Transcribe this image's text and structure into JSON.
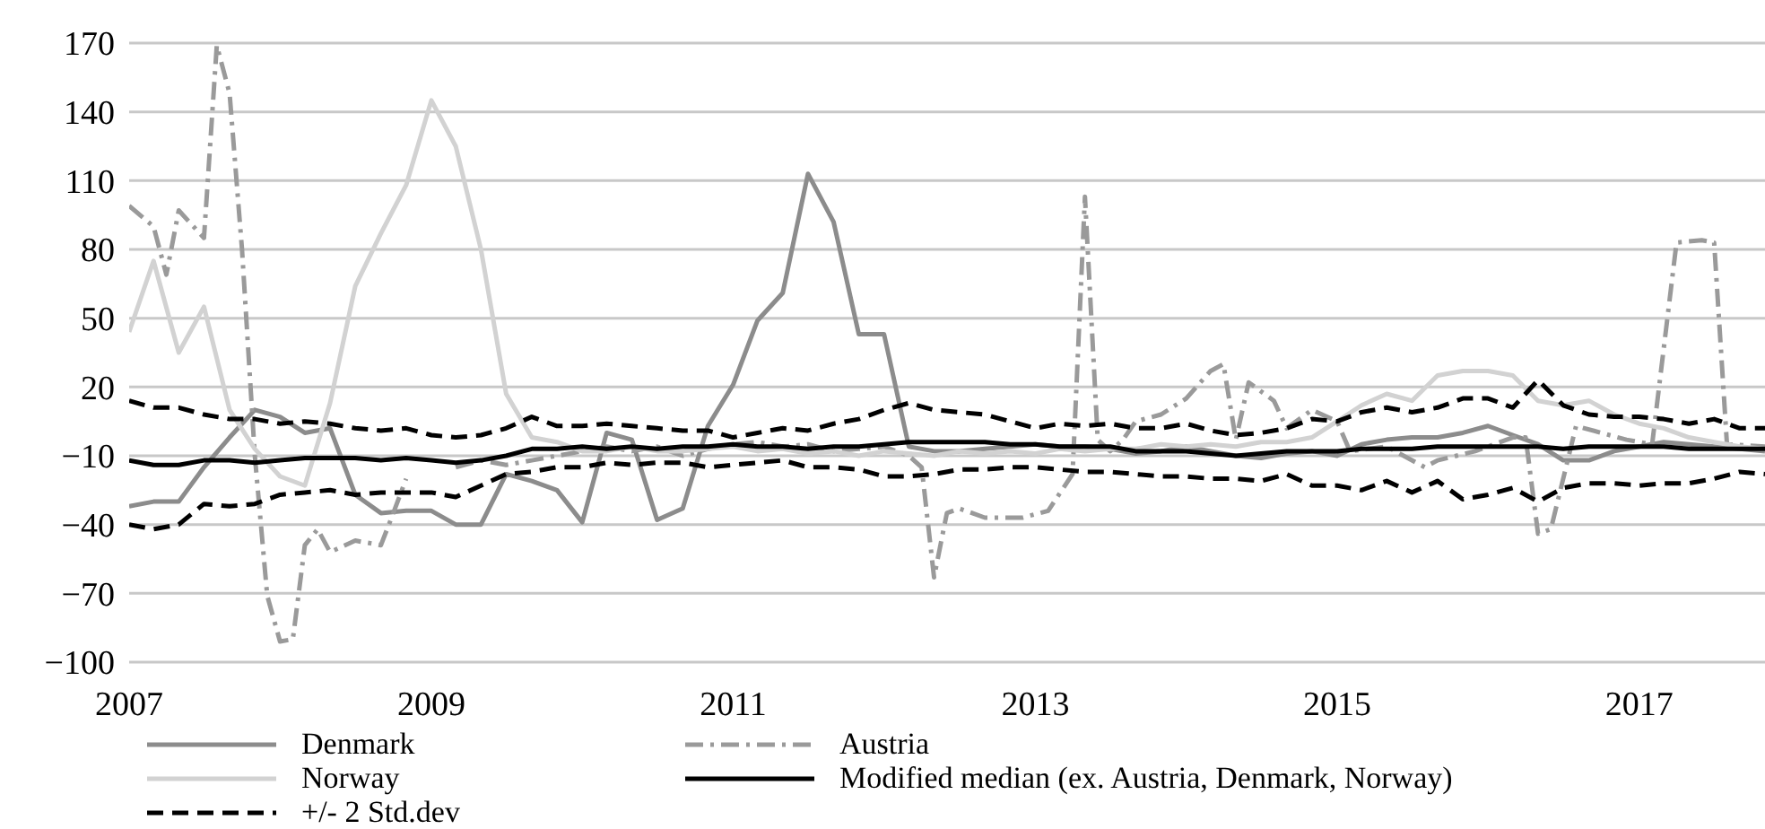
{
  "chart_data": {
    "type": "line",
    "x": [
      "2007-01",
      "2007-03",
      "2007-05",
      "2007-07",
      "2007-09",
      "2007-11",
      "2008-01",
      "2008-03",
      "2008-05",
      "2008-07",
      "2008-09",
      "2008-11",
      "2009-01",
      "2009-03",
      "2009-05",
      "2009-07",
      "2009-09",
      "2009-11",
      "2010-01",
      "2010-03",
      "2010-05",
      "2010-07",
      "2010-09",
      "2010-11",
      "2011-01",
      "2011-03",
      "2011-05",
      "2011-07",
      "2011-09",
      "2011-11",
      "2012-01",
      "2012-03",
      "2012-05",
      "2012-07",
      "2012-09",
      "2012-11",
      "2013-01",
      "2013-03",
      "2013-05",
      "2013-07",
      "2013-09",
      "2013-11",
      "2014-01",
      "2014-03",
      "2014-05",
      "2014-07",
      "2014-09",
      "2014-11",
      "2015-01",
      "2015-03",
      "2015-05",
      "2015-07",
      "2015-09",
      "2015-11",
      "2016-01",
      "2016-03",
      "2016-05",
      "2016-07",
      "2016-09",
      "2016-11",
      "2017-01",
      "2017-03",
      "2017-05",
      "2017-07",
      "2017-09",
      "2017-11"
    ],
    "series": [
      {
        "name": "Denmark",
        "color": "#8c8c8c",
        "line_style": "solid",
        "values": [
          -32,
          -30,
          -30,
          -15,
          -2,
          10,
          7,
          0,
          2,
          -27,
          -35,
          -34,
          -34,
          -40,
          -40,
          -18,
          -21,
          -25,
          -39,
          0,
          -3,
          -38,
          -33,
          3,
          21,
          49,
          61,
          113,
          92,
          43,
          43,
          -6,
          -8,
          -8,
          -7,
          -6,
          -5,
          -6,
          -6,
          -7,
          -9,
          -8,
          -6,
          -8,
          -10,
          -11,
          -9,
          -8,
          -10,
          -5,
          -3,
          -2,
          -2,
          0,
          3,
          -1,
          -5,
          -12,
          -12,
          -8,
          -6,
          -4,
          -5,
          -6,
          -7,
          -8
        ]
      },
      {
        "name": "Austria",
        "color": "#9a9a9a",
        "line_style": "dashdot",
        "x": [
          "2007-01",
          "2007-03",
          "2007-04",
          "2007-05",
          "2007-07",
          "2007-08",
          "2007-09",
          "2007-10",
          "2007-11",
          "2007-12",
          "2008-01",
          "2008-02",
          "2008-03",
          "2008-04",
          "2008-05",
          "2008-07",
          "2008-09",
          "2008-10",
          "2008-11",
          "2008-12",
          "2009-01",
          "2009-02",
          "2009-03",
          "2009-05",
          "2009-07",
          "2009-09",
          "2009-11",
          "2010-01",
          "2010-03",
          "2010-05",
          "2010-07",
          "2010-09",
          "2010-11",
          "2011-01",
          "2011-03",
          "2011-05",
          "2011-07",
          "2011-09",
          "2011-11",
          "2012-01",
          "2012-03",
          "2012-04",
          "2012-05",
          "2012-06",
          "2012-07",
          "2012-09",
          "2012-12",
          "2013-02",
          "2013-04",
          "2013-05",
          "2013-06",
          "2013-07",
          "2013-08",
          "2013-09",
          "2013-11",
          "2014-01",
          "2014-03",
          "2014-04",
          "2014-05",
          "2014-06",
          "2014-08",
          "2014-09",
          "2014-11",
          "2015-01",
          "2015-02",
          "2015-05",
          "2015-08",
          "2015-09",
          "2015-12",
          "2016-03",
          "2016-04",
          "2016-05",
          "2016-06",
          "2016-08",
          "2016-10",
          "2016-12",
          "2017-02",
          "2017-04",
          "2017-06",
          "2017-07",
          "2017-08",
          "2017-11"
        ],
        "values": [
          99,
          90,
          69,
          97,
          85,
          169,
          148,
          80,
          -10,
          -71,
          -91,
          -90,
          -49,
          -42,
          -52,
          -47,
          -49,
          -35,
          -20,
          null,
          null,
          null,
          -15,
          -12,
          -14,
          -12,
          -10,
          -8,
          -6,
          -8,
          -6,
          -10,
          -7,
          -5,
          -4,
          -6,
          -5,
          -8,
          -7,
          -6,
          -10,
          -15,
          -63,
          -35,
          -33,
          -37,
          -37,
          -34,
          -18,
          103,
          -3,
          -8,
          -3,
          5,
          8,
          15,
          27,
          30,
          -3,
          22,
          14,
          2,
          10,
          5,
          -8,
          -6,
          -15,
          -12,
          -8,
          -2,
          -2,
          -44,
          -42,
          3,
          0,
          -3,
          -5,
          83,
          84,
          83,
          -5,
          -6
        ]
      },
      {
        "name": "Norway",
        "color": "#d2d2d2",
        "line_style": "solid",
        "values": [
          44,
          75,
          35,
          55,
          10,
          -7,
          -19,
          -23,
          13,
          64,
          87,
          108,
          145,
          125,
          80,
          17,
          -2,
          -4,
          -8,
          -8,
          -6,
          -8,
          -8,
          -7,
          -6,
          -8,
          -7,
          -9,
          -8,
          -10,
          -8,
          -9,
          -10,
          -8,
          -9,
          -8,
          -9,
          -7,
          -8,
          -7,
          -7,
          -5,
          -6,
          -5,
          -6,
          -4,
          -4,
          -2,
          5,
          12,
          17,
          14,
          25,
          27,
          27,
          25,
          14,
          12,
          14,
          8,
          4,
          2,
          -2,
          -4,
          -6,
          -7
        ]
      },
      {
        "name": "Modified median (ex. Austria, Denmark, Norway)",
        "color": "#000000",
        "line_style": "solid",
        "values": [
          -12,
          -14,
          -14,
          -12,
          -12,
          -13,
          -12,
          -11,
          -11,
          -11,
          -12,
          -11,
          -12,
          -13,
          -12,
          -10,
          -7,
          -7,
          -6,
          -7,
          -6,
          -7,
          -6,
          -6,
          -5,
          -6,
          -6,
          -7,
          -6,
          -6,
          -5,
          -4,
          -4,
          -4,
          -4,
          -5,
          -5,
          -6,
          -6,
          -6,
          -8,
          -8,
          -8,
          -9,
          -10,
          -9,
          -8,
          -8,
          -8,
          -7,
          -7,
          -7,
          -6,
          -6,
          -6,
          -6,
          -6,
          -7,
          -6,
          -6,
          -6,
          -6,
          -7,
          -7,
          -7,
          -7
        ]
      },
      {
        "name": "+/- 2 Std.dev",
        "color": "#000000",
        "line_style": "dashed",
        "values": [
          14,
          11,
          11,
          8,
          6,
          6,
          4,
          5,
          4,
          2,
          1,
          2,
          -1,
          -2,
          -1,
          2,
          7,
          3,
          3,
          4,
          3,
          2,
          1,
          1,
          -2,
          0,
          2,
          1,
          4,
          6,
          10,
          13,
          10,
          9,
          8,
          5,
          2,
          4,
          3,
          4,
          2,
          2,
          4,
          1,
          -1,
          0,
          2,
          6,
          5,
          9,
          11,
          9,
          11,
          15,
          15,
          11,
          23,
          12,
          8,
          7,
          7,
          6,
          4,
          6,
          2,
          2
        ]
      },
      {
        "color": "#000000",
        "line_style": "dashed",
        "values": [
          -40,
          -42,
          -40,
          -31,
          -32,
          -31,
          -27,
          -26,
          -25,
          -27,
          -26,
          -26,
          -26,
          -28,
          -23,
          -18,
          -17,
          -15,
          -15,
          -13,
          -14,
          -13,
          -13,
          -15,
          -14,
          -13,
          -12,
          -15,
          -15,
          -16,
          -19,
          -19,
          -18,
          -16,
          -16,
          -15,
          -15,
          -16,
          -17,
          -17,
          -18,
          -19,
          -19,
          -20,
          -20,
          -21,
          -18,
          -23,
          -23,
          -25,
          -21,
          -26,
          -21,
          -29,
          -27,
          -24,
          -30,
          -24,
          -22,
          -22,
          -23,
          -22,
          -22,
          -20,
          -17,
          -18
        ]
      }
    ],
    "xlim": [
      "2007-01",
      "2017-11"
    ],
    "xticks": [
      "2007",
      "2009",
      "2011",
      "2013",
      "2015",
      "2017"
    ],
    "ylim": [
      -100,
      170
    ],
    "yticks": [
      -100,
      -70,
      -40,
      -10,
      20,
      50,
      80,
      110,
      140,
      170
    ],
    "grid": "y",
    "legend": "bottom"
  }
}
